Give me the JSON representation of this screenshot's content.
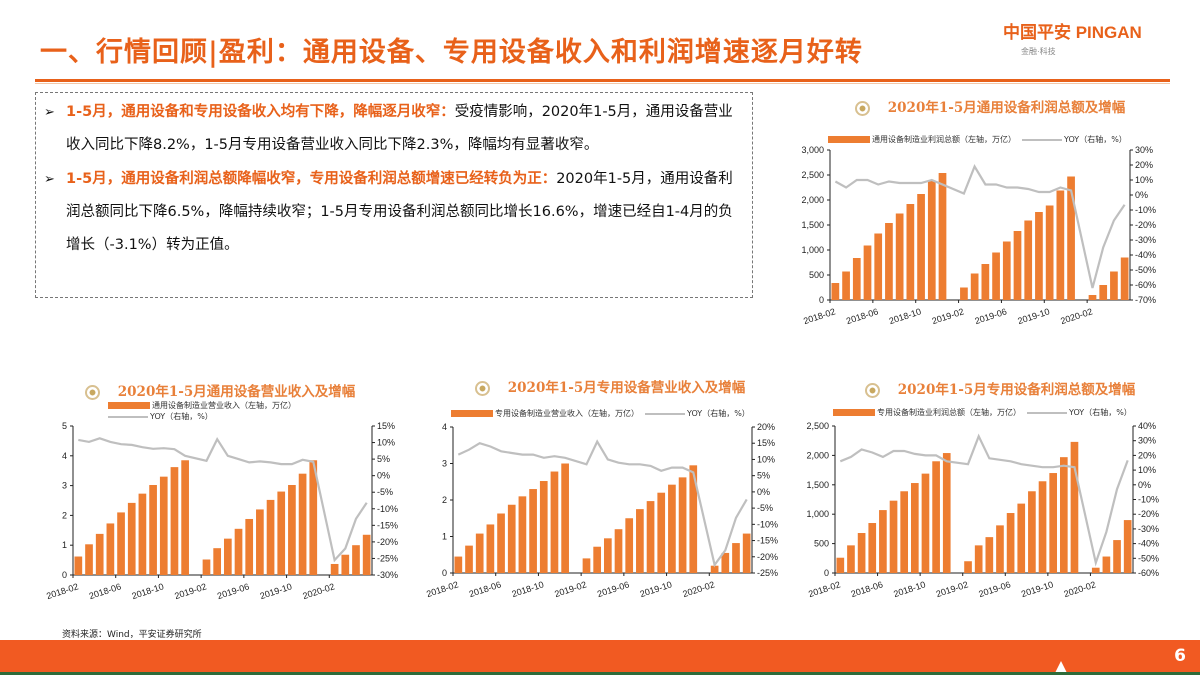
{
  "header": {
    "title": "一、行情回顾|盈利：通用设备、专用设备收入和利润增速逐月好转",
    "logo_text": "中国平安 PINGAN",
    "logo_sub": "金融·科技"
  },
  "summary": {
    "bullets": [
      {
        "lead": "1-5月，通用设备和专用设备收入均有下降，降幅逐月收窄：",
        "body": "受疫情影响，2020年1-5月，通用设备营业收入同比下降8.2%，1-5月专用设备营业收入同比下降2.3%，降幅均有显著收窄。"
      },
      {
        "lead": "1-5月，通用设备利润总额降幅收窄，专用设备利润总额增速已经转负为正：",
        "body": "2020年1-5月，通用设备利润总额同比下降6.5%，降幅持续收窄；1-5月专用设备利润总额同比增长16.6%，增速已经自1-4月的负增长（-3.1%）转为正值。"
      }
    ]
  },
  "colors": {
    "accent": "#E8611A",
    "bar": "#ED7D31",
    "line": "#BFBFBF",
    "footer_band": "#F15A22"
  },
  "chart_data": [
    {
      "type": "bar+line",
      "title": "2020年1-5月通用设备利润总额及增幅",
      "x": [
        "2018-02",
        "2018-03",
        "2018-04",
        "2018-05",
        "2018-06",
        "2018-07",
        "2018-08",
        "2018-09",
        "2018-10",
        "2018-11",
        "2018-12",
        "2019-01",
        "2019-02",
        "2019-03",
        "2019-04",
        "2019-05",
        "2019-06",
        "2019-07",
        "2019-08",
        "2019-09",
        "2019-10",
        "2019-11",
        "2019-12",
        "2020-01",
        "2020-02",
        "2020-03",
        "2020-04",
        "2020-05"
      ],
      "x_ticks": [
        "2018-02",
        "2018-06",
        "2018-10",
        "2019-02",
        "2019-06",
        "2019-10",
        "2020-02"
      ],
      "series": [
        {
          "name": "通用设备制造业利润总额（左轴，万亿）",
          "type": "bar",
          "axis": "left",
          "values": [
            340,
            570,
            840,
            1090,
            1330,
            1540,
            1730,
            1920,
            2120,
            2390,
            2540,
            null,
            250,
            530,
            720,
            950,
            1170,
            1380,
            1590,
            1760,
            1890,
            2190,
            2470,
            null,
            100,
            300,
            570,
            850
          ]
        },
        {
          "name": "YOY（右轴，%）",
          "type": "line",
          "axis": "right",
          "values": [
            9,
            5,
            10,
            10,
            7,
            9,
            8,
            8,
            8,
            10,
            7,
            null,
            1,
            19,
            7,
            7,
            5,
            5,
            4,
            2,
            2,
            5,
            3,
            null,
            -62,
            -35,
            -17,
            -6.5
          ]
        }
      ],
      "left_axis": {
        "range": [
          0,
          3000
        ],
        "ticks": [
          "0",
          "500",
          "1,000",
          "1,500",
          "2,000",
          "2,500",
          "3,000"
        ]
      },
      "right_axis": {
        "range": [
          -70,
          30
        ],
        "ticks": [
          "-70%",
          "-60%",
          "-50%",
          "-40%",
          "-30%",
          "-20%",
          "-10%",
          "0%",
          "10%",
          "20%",
          "30%"
        ]
      },
      "legend_rows": 1
    },
    {
      "type": "bar+line",
      "title": "2020年1-5月通用设备营业收入及增幅",
      "x": [
        "2018-02",
        "2018-03",
        "2018-04",
        "2018-05",
        "2018-06",
        "2018-07",
        "2018-08",
        "2018-09",
        "2018-10",
        "2018-11",
        "2018-12",
        "2019-01",
        "2019-02",
        "2019-03",
        "2019-04",
        "2019-05",
        "2019-06",
        "2019-07",
        "2019-08",
        "2019-09",
        "2019-10",
        "2019-11",
        "2019-12",
        "2020-01",
        "2020-02",
        "2020-03",
        "2020-04",
        "2020-05"
      ],
      "x_ticks": [
        "2018-02",
        "2018-06",
        "2018-10",
        "2019-02",
        "2019-06",
        "2019-10",
        "2020-02"
      ],
      "series": [
        {
          "name": "通用设备制造业营业收入（左轴，万亿）",
          "type": "bar",
          "axis": "left",
          "values": [
            0.62,
            1.03,
            1.38,
            1.73,
            2.1,
            2.42,
            2.73,
            3.02,
            3.3,
            3.62,
            3.85,
            null,
            0.52,
            0.9,
            1.22,
            1.55,
            1.88,
            2.2,
            2.52,
            2.8,
            3.02,
            3.4,
            3.85,
            null,
            0.37,
            0.68,
            1.0,
            1.35
          ]
        },
        {
          "name": "YOY（右轴，%）",
          "type": "line",
          "axis": "right",
          "values": [
            10.8,
            10.2,
            11.3,
            10.2,
            9.5,
            9.3,
            8.6,
            8.1,
            8.3,
            8,
            6,
            null,
            4.5,
            11,
            6,
            5,
            4,
            4.3,
            4,
            3.5,
            3.5,
            4.8,
            4.2,
            null,
            -25.5,
            -22,
            -13,
            -8.2
          ]
        }
      ],
      "left_axis": {
        "range": [
          0,
          5
        ],
        "ticks": [
          "0",
          "1",
          "2",
          "3",
          "4",
          "5"
        ]
      },
      "right_axis": {
        "range": [
          -30,
          15
        ],
        "ticks": [
          "-30%",
          "-25%",
          "-20%",
          "-15%",
          "-10%",
          "-5%",
          "0%",
          "5%",
          "10%",
          "15%"
        ]
      },
      "legend_rows": 2
    },
    {
      "type": "bar+line",
      "title": "2020年1-5月专用设备营业收入及增幅",
      "x": [
        "2018-02",
        "2018-03",
        "2018-04",
        "2018-05",
        "2018-06",
        "2018-07",
        "2018-08",
        "2018-09",
        "2018-10",
        "2018-11",
        "2018-12",
        "2019-01",
        "2019-02",
        "2019-03",
        "2019-04",
        "2019-05",
        "2019-06",
        "2019-07",
        "2019-08",
        "2019-09",
        "2019-10",
        "2019-11",
        "2019-12",
        "2020-01",
        "2020-02",
        "2020-03",
        "2020-04",
        "2020-05"
      ],
      "x_ticks": [
        "2018-02",
        "2018-06",
        "2018-10",
        "2019-02",
        "2019-06",
        "2019-10",
        "2020-02"
      ],
      "series": [
        {
          "name": "专用设备制造业营业收入（左轴，万亿）",
          "type": "bar",
          "axis": "left",
          "values": [
            0.45,
            0.75,
            1.08,
            1.33,
            1.63,
            1.87,
            2.1,
            2.3,
            2.52,
            2.78,
            3.0,
            null,
            0.4,
            0.72,
            0.95,
            1.2,
            1.5,
            1.75,
            1.97,
            2.2,
            2.42,
            2.62,
            2.95,
            null,
            0.2,
            0.55,
            0.82,
            1.08
          ]
        },
        {
          "name": "YOY（右轴，%）",
          "type": "line",
          "axis": "right",
          "values": [
            11.5,
            13,
            15,
            14,
            12.5,
            12,
            11.5,
            11.5,
            10.5,
            11,
            10.5,
            null,
            8.5,
            15.5,
            10,
            9,
            8.5,
            8.5,
            8,
            6.5,
            7.5,
            7.5,
            6,
            null,
            -22.5,
            -18,
            -8,
            -2.3
          ]
        }
      ],
      "left_axis": {
        "range": [
          0,
          4
        ],
        "ticks": [
          "0",
          "1",
          "2",
          "3",
          "4"
        ]
      },
      "right_axis": {
        "range": [
          -25,
          20
        ],
        "ticks": [
          "-25%",
          "-20%",
          "-15%",
          "-10%",
          "-5%",
          "0%",
          "5%",
          "10%",
          "15%",
          "20%"
        ]
      },
      "legend_rows": 1
    },
    {
      "type": "bar+line",
      "title": "2020年1-5月专用设备利润总额及增幅",
      "x": [
        "2018-02",
        "2018-03",
        "2018-04",
        "2018-05",
        "2018-06",
        "2018-07",
        "2018-08",
        "2018-09",
        "2018-10",
        "2018-11",
        "2018-12",
        "2019-01",
        "2019-02",
        "2019-03",
        "2019-04",
        "2019-05",
        "2019-06",
        "2019-07",
        "2019-08",
        "2019-09",
        "2019-10",
        "2019-11",
        "2019-12",
        "2020-01",
        "2020-02",
        "2020-03",
        "2020-04",
        "2020-05"
      ],
      "x_ticks": [
        "2018-02",
        "2018-06",
        "2018-10",
        "2019-02",
        "2019-06",
        "2019-10",
        "2020-02"
      ],
      "series": [
        {
          "name": "专用设备制造业利润总额（左轴，万亿）",
          "type": "bar",
          "axis": "left",
          "values": [
            260,
            470,
            680,
            850,
            1070,
            1230,
            1390,
            1530,
            1690,
            1900,
            2040,
            null,
            200,
            470,
            610,
            810,
            1020,
            1180,
            1390,
            1560,
            1700,
            1970,
            2230,
            null,
            90,
            280,
            560,
            900
          ]
        },
        {
          "name": "YOY（右轴，%）",
          "type": "line",
          "axis": "right",
          "values": [
            16,
            19,
            24,
            22,
            19,
            23,
            23,
            21,
            20,
            20,
            16,
            null,
            14,
            33,
            18,
            17,
            16,
            14,
            13,
            12,
            12,
            13,
            12,
            null,
            -53,
            -32,
            -3,
            16.6
          ]
        }
      ],
      "left_axis": {
        "range": [
          0,
          2500
        ],
        "ticks": [
          "0",
          "500",
          "1,000",
          "1,500",
          "2,000",
          "2,500"
        ]
      },
      "right_axis": {
        "range": [
          -60,
          40
        ],
        "ticks": [
          "-60%",
          "-50%",
          "-40%",
          "-30%",
          "-20%",
          "-10%",
          "0%",
          "10%",
          "20%",
          "30%",
          "40%"
        ]
      },
      "legend_rows": 1
    }
  ],
  "footer": {
    "source": "资料来源：Wind，平安证券研究所",
    "page_number": "6"
  }
}
